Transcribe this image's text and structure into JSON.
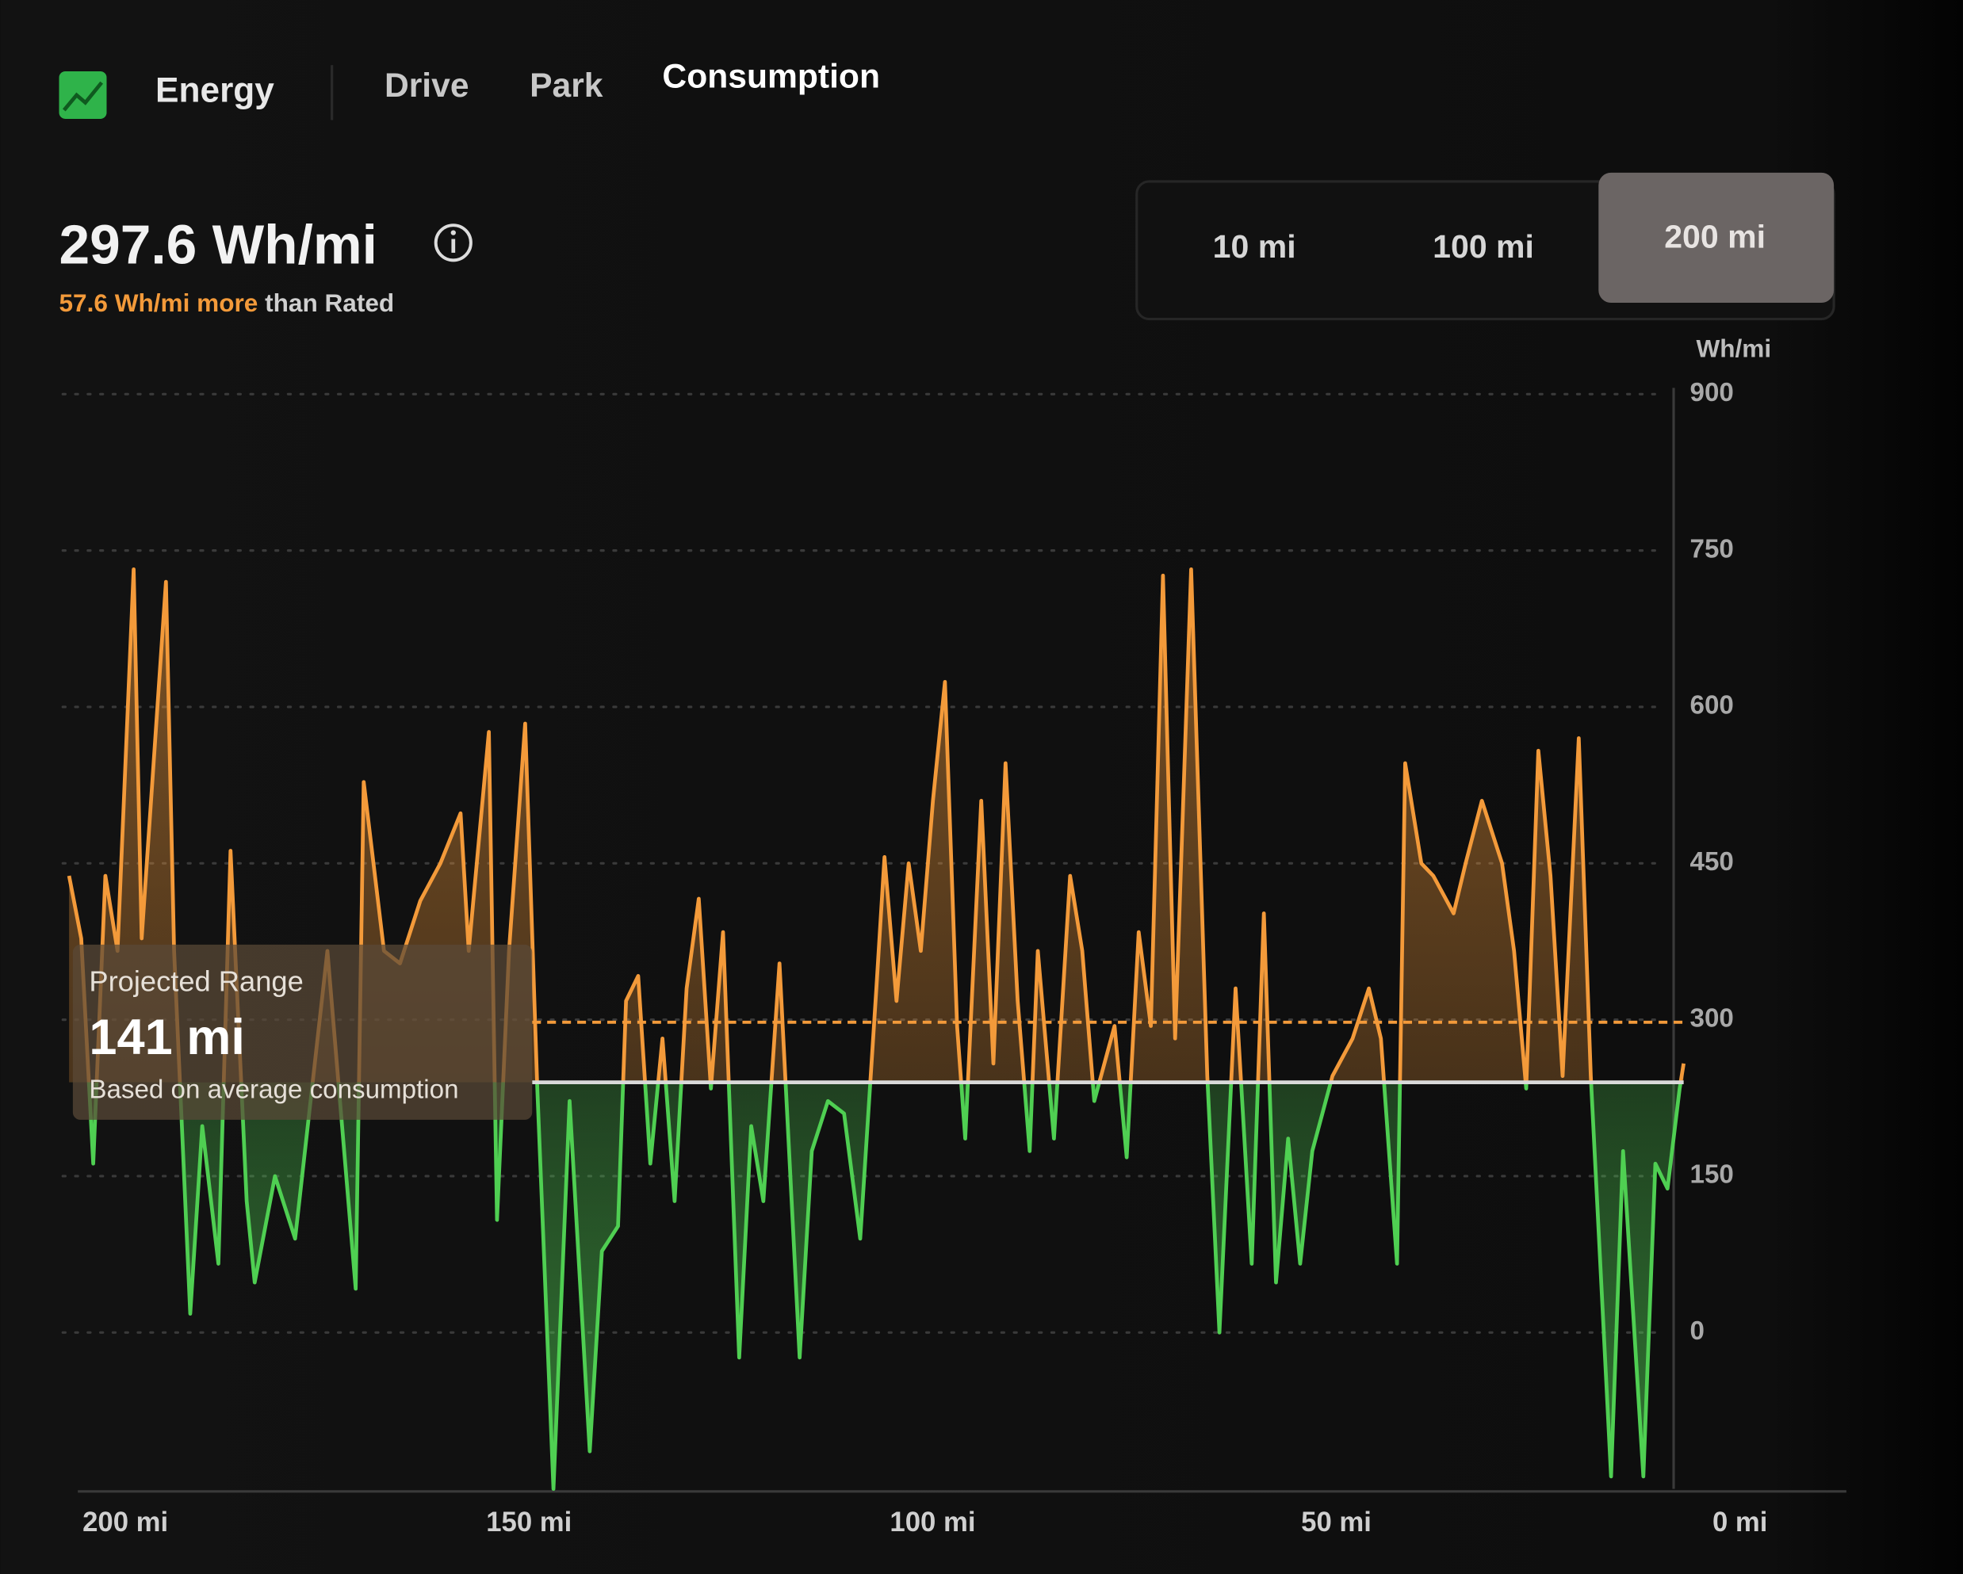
{
  "nav": {
    "title": "Energy",
    "tabs": [
      "Drive",
      "Park",
      "Consumption"
    ],
    "active_tab": 2
  },
  "summary": {
    "consumption": "297.6 Wh/mi",
    "difference": "57.6 Wh/mi more",
    "comparison": "than Rated"
  },
  "range_options": {
    "options": [
      "10 mi",
      "100 mi",
      "200 mi"
    ],
    "selected": 2
  },
  "projected_range": {
    "title": "Projected Range",
    "value": "141 mi",
    "note": "Based on average consumption"
  },
  "chart_data": {
    "type": "area",
    "y_label": "Wh/mi",
    "x": [
      200,
      198.5,
      197,
      195.5,
      194,
      192,
      191,
      188,
      187,
      185,
      183.5,
      181.5,
      180,
      178,
      177,
      174.5,
      172,
      168,
      164.5,
      163.5,
      161,
      159,
      156.5,
      154,
      151.5,
      150.5,
      148,
      147,
      145.5,
      143.5,
      142,
      140,
      138,
      135.5,
      134,
      132,
      131,
      129.5,
      128,
      126.5,
      125,
      123.5,
      122,
      120.5,
      119,
      117,
      115.5,
      114,
      112,
      109.5,
      108,
      106,
      104,
      102,
      100,
      99,
      97.5,
      96,
      94.5,
      93,
      91.5,
      90,
      89,
      87,
      85.5,
      84,
      82.5,
      81,
      80,
      78,
      76,
      74.5,
      73,
      70.5,
      69,
      67.5,
      66,
      64.5,
      63,
      61,
      59,
      57.5,
      55.5,
      53.5,
      52,
      50.5,
      49,
      47.5,
      46,
      43.5,
      41,
      39,
      37.5,
      35.5,
      34.5,
      32.5,
      31,
      28.5,
      27,
      25,
      22.5,
      21,
      19.5,
      18,
      16.5,
      15,
      13,
      11.5,
      9,
      7.5,
      5,
      3.5,
      2,
      0.5,
      0
    ],
    "values": [
      438,
      378,
      162,
      438,
      366,
      732,
      378,
      720,
      366,
      18,
      198,
      66,
      462,
      126,
      48,
      150,
      90,
      366,
      42,
      528,
      366,
      354,
      414,
      450,
      498,
      366,
      576,
      108,
      366,
      584,
      234,
      -150,
      222,
      -114,
      78,
      102,
      318,
      342,
      162,
      282,
      126,
      330,
      416,
      234,
      384,
      -24,
      198,
      126,
      354,
      -24,
      174,
      222,
      210,
      90,
      330,
      456,
      318,
      450,
      366,
      510,
      624,
      294,
      186,
      510,
      258,
      546,
      318,
      174,
      366,
      186,
      438,
      366,
      222,
      294,
      168,
      384,
      294,
      726,
      282,
      732,
      246,
      0,
      330,
      66,
      402,
      48,
      186,
      66,
      174,
      246,
      282,
      330,
      282,
      66,
      546,
      450,
      438,
      402,
      450,
      510,
      450,
      366,
      234,
      558,
      438,
      246,
      570,
      246,
      -138,
      174,
      -138,
      162,
      138,
      234,
      258
    ],
    "xlim": [
      200,
      0
    ],
    "ylim": [
      -150,
      900
    ],
    "xticks": [
      {
        "value": 200,
        "label": "200 mi"
      },
      {
        "value": 150,
        "label": "150 mi"
      },
      {
        "value": 100,
        "label": "100 mi"
      },
      {
        "value": 50,
        "label": "50 mi"
      },
      {
        "value": 0,
        "label": "0 mi"
      }
    ],
    "yticks": [
      900,
      750,
      600,
      450,
      300,
      150,
      0
    ],
    "grid": true,
    "average": 297.6,
    "rated": 240,
    "colors": {
      "above": "#f39a3a",
      "below": "#4fcf52",
      "average": "#f39a3a",
      "rated": "#d9d9d9"
    }
  }
}
